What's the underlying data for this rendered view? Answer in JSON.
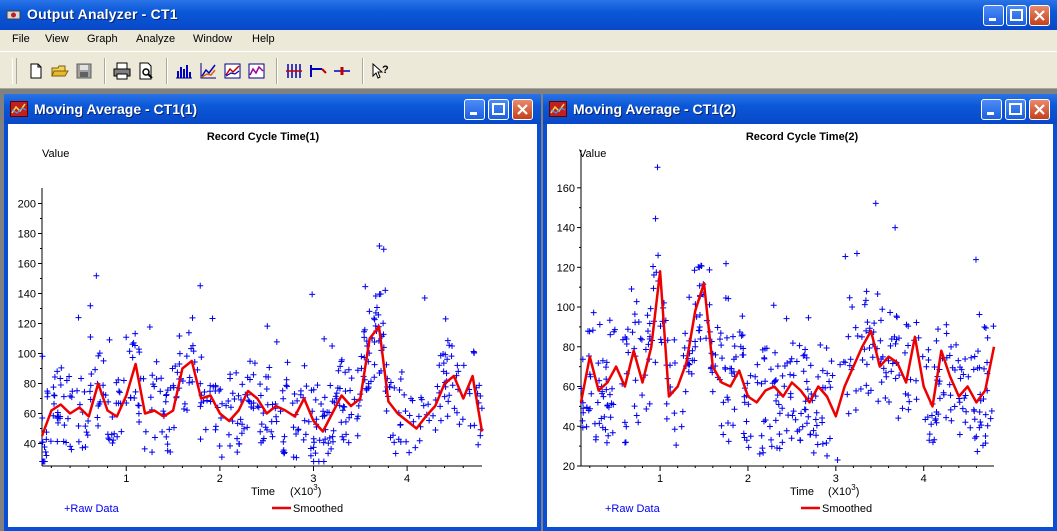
{
  "window": {
    "title": "Output Analyzer - CT1"
  },
  "menu": [
    "File",
    "View",
    "Graph",
    "Analyze",
    "Window",
    "Help"
  ],
  "toolbar_icons": [
    "new-icon",
    "open-icon",
    "save-icon",
    "print-icon",
    "print-preview-icon",
    "histogram-icon",
    "line-plot-icon",
    "area-plot-icon",
    "moving-average-icon",
    "bar-chart-icon",
    "interval-icon",
    "point-estimate-icon",
    "help-pointer-icon"
  ],
  "charts": [
    {
      "window_title": "Moving Average - CT1(1)",
      "title": "Record Cycle Time(1)",
      "ylabel": "Value",
      "xlabel": "Time",
      "xunit": "(X10",
      "xunit_sup": "3",
      "xunit_close": ")",
      "legend_raw": "+Raw Data",
      "legend_smoothed": "Smoothed",
      "yticks": [
        "40",
        "60",
        "80",
        "100",
        "120",
        "140",
        "160",
        "180",
        "200"
      ],
      "xticks": [
        "1",
        "2",
        "3",
        "4"
      ],
      "colors": {
        "raw": "#0000ee",
        "smoothed": "#ee0000"
      }
    },
    {
      "window_title": "Moving Average - CT1(2)",
      "title": "Record Cycle Time(2)",
      "ylabel": "Value",
      "xlabel": "Time",
      "xunit": "(X10",
      "xunit_sup": "3",
      "xunit_close": ")",
      "legend_raw": "+Raw Data",
      "legend_smoothed": "Smoothed",
      "yticks": [
        "20",
        "40",
        "60",
        "80",
        "100",
        "120",
        "140",
        "160"
      ],
      "xticks": [
        "1",
        "2",
        "3",
        "4"
      ],
      "colors": {
        "raw": "#0000ee",
        "smoothed": "#ee0000"
      }
    }
  ],
  "chart_data": [
    {
      "type": "scatter",
      "title": "Record Cycle Time(1)",
      "xlabel": "Time (X10^3)",
      "ylabel": "Value",
      "xlim": [
        0.1,
        4.8
      ],
      "ylim": [
        25,
        205
      ],
      "grid": false,
      "legend": "bottom",
      "series": [
        {
          "name": "Raw Data",
          "marker": "+",
          "n_points": "dense cloud, roughly 40-200"
        },
        {
          "name": "Smoothed",
          "type": "line",
          "x": [
            0.1,
            0.2,
            0.3,
            0.4,
            0.5,
            0.6,
            0.7,
            0.8,
            0.9,
            1.0,
            1.1,
            1.2,
            1.3,
            1.4,
            1.5,
            1.6,
            1.7,
            1.8,
            1.9,
            2.0,
            2.1,
            2.2,
            2.3,
            2.4,
            2.5,
            2.6,
            2.7,
            2.8,
            2.9,
            3.0,
            3.1,
            3.2,
            3.3,
            3.4,
            3.5,
            3.6,
            3.7,
            3.8,
            3.9,
            4.0,
            4.1,
            4.2,
            4.3,
            4.4,
            4.5,
            4.6,
            4.7,
            4.8
          ],
          "y": [
            45,
            62,
            66,
            60,
            64,
            58,
            80,
            62,
            58,
            72,
            93,
            60,
            62,
            58,
            62,
            90,
            95,
            70,
            72,
            60,
            55,
            62,
            75,
            70,
            60,
            65,
            62,
            58,
            70,
            55,
            48,
            60,
            72,
            65,
            70,
            110,
            118,
            68,
            60,
            55,
            50,
            58,
            65,
            80,
            85,
            70,
            85,
            48
          ]
        }
      ]
    },
    {
      "type": "scatter",
      "title": "Record Cycle Time(2)",
      "xlabel": "Time (X10^3)",
      "ylabel": "Value",
      "xlim": [
        0.1,
        4.8
      ],
      "ylim": [
        20,
        175
      ],
      "grid": false,
      "legend": "bottom",
      "series": [
        {
          "name": "Raw Data",
          "marker": "+",
          "n_points": "dense cloud, roughly 20-175"
        },
        {
          "name": "Smoothed",
          "type": "line",
          "x": [
            0.1,
            0.2,
            0.3,
            0.4,
            0.5,
            0.6,
            0.7,
            0.8,
            0.9,
            1.0,
            1.1,
            1.2,
            1.3,
            1.4,
            1.5,
            1.6,
            1.7,
            1.8,
            1.9,
            2.0,
            2.1,
            2.2,
            2.3,
            2.4,
            2.5,
            2.6,
            2.7,
            2.8,
            2.9,
            3.0,
            3.1,
            3.2,
            3.3,
            3.4,
            3.5,
            3.6,
            3.7,
            3.8,
            3.9,
            4.0,
            4.1,
            4.2,
            4.3,
            4.4,
            4.5,
            4.6,
            4.7,
            4.8
          ],
          "y": [
            52,
            75,
            58,
            62,
            70,
            60,
            78,
            62,
            80,
            118,
            55,
            60,
            72,
            98,
            112,
            70,
            62,
            60,
            68,
            55,
            52,
            58,
            60,
            55,
            62,
            58,
            52,
            60,
            55,
            45,
            60,
            70,
            80,
            88,
            70,
            75,
            72,
            62,
            85,
            60,
            50,
            78,
            65,
            55,
            60,
            52,
            58,
            80
          ]
        }
      ]
    }
  ]
}
